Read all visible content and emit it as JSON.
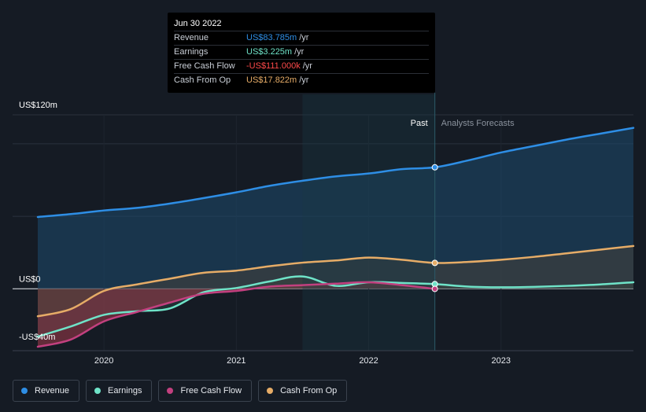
{
  "tooltip": {
    "date": "Jun 30 2022",
    "rows": [
      {
        "name": "Revenue",
        "value": "US$83.785m",
        "unit": "/yr",
        "color": "#2e8ee5"
      },
      {
        "name": "Earnings",
        "value": "US$3.225m",
        "unit": "/yr",
        "color": "#6fe3c8"
      },
      {
        "name": "Free Cash Flow",
        "value": "-US$111.000k",
        "unit": "/yr",
        "color": "#ff4a4a"
      },
      {
        "name": "Cash From Op",
        "value": "US$17.822m",
        "unit": "/yr",
        "color": "#e6ac67"
      }
    ]
  },
  "labels": {
    "past": "Past",
    "forecast": "Analysts Forecasts"
  },
  "legend": [
    {
      "name": "Revenue",
      "color": "#2e8ee5"
    },
    {
      "name": "Earnings",
      "color": "#6fe3c8"
    },
    {
      "name": "Free Cash Flow",
      "color": "#c2407f"
    },
    {
      "name": "Cash From Op",
      "color": "#e6ac67"
    }
  ],
  "chart_data": {
    "type": "line",
    "x_unit": "year",
    "xlim": [
      2019.5,
      2024.0
    ],
    "ylim": [
      -40,
      120
    ],
    "y_tick_labels": [
      {
        "value": 120,
        "label": "US$120m"
      },
      {
        "value": 0,
        "label": "US$0"
      },
      {
        "value": -40,
        "label": "-US$40m"
      }
    ],
    "x_ticks": [
      2020,
      2021,
      2022,
      2023
    ],
    "x_tick_labels": [
      "2020",
      "2021",
      "2022",
      "2023"
    ],
    "forecast_start": 2022.5,
    "highlight_range": [
      2021.5,
      2022.5
    ],
    "series": [
      {
        "name": "Revenue",
        "color": "#2e8ee5",
        "points": [
          [
            2019.5,
            49.5
          ],
          [
            2019.75,
            51.5
          ],
          [
            2020.0,
            54.0
          ],
          [
            2020.25,
            55.8
          ],
          [
            2020.5,
            58.8
          ],
          [
            2020.75,
            62.5
          ],
          [
            2021.0,
            66.5
          ],
          [
            2021.25,
            71.0
          ],
          [
            2021.5,
            74.5
          ],
          [
            2021.75,
            77.5
          ],
          [
            2022.0,
            79.5
          ],
          [
            2022.25,
            82.5
          ],
          [
            2022.5,
            83.785
          ],
          [
            2022.75,
            88.5
          ],
          [
            2023.0,
            94.0
          ],
          [
            2023.25,
            98.5
          ],
          [
            2023.5,
            103.0
          ],
          [
            2023.75,
            107.0
          ],
          [
            2024.0,
            111.0
          ]
        ]
      },
      {
        "name": "Earnings",
        "color": "#6fe3c8",
        "points": [
          [
            2019.5,
            -33.0
          ],
          [
            2019.75,
            -26.0
          ],
          [
            2020.0,
            -18.0
          ],
          [
            2020.25,
            -15.5
          ],
          [
            2020.5,
            -13.5
          ],
          [
            2020.75,
            -2.5
          ],
          [
            2021.0,
            0.5
          ],
          [
            2021.25,
            5.0
          ],
          [
            2021.5,
            8.5
          ],
          [
            2021.75,
            2.0
          ],
          [
            2022.0,
            4.5
          ],
          [
            2022.25,
            4.0
          ],
          [
            2022.5,
            3.225
          ],
          [
            2022.75,
            1.5
          ],
          [
            2023.0,
            1.0
          ],
          [
            2023.25,
            1.3
          ],
          [
            2023.5,
            2.0
          ],
          [
            2023.75,
            3.0
          ],
          [
            2024.0,
            4.5
          ]
        ]
      },
      {
        "name": "Free Cash Flow",
        "color": "#c2407f",
        "points": [
          [
            2019.5,
            -40.0
          ],
          [
            2019.75,
            -35.0
          ],
          [
            2020.0,
            -22.5
          ],
          [
            2020.25,
            -16.0
          ],
          [
            2020.5,
            -9.5
          ],
          [
            2020.75,
            -3.5
          ],
          [
            2021.0,
            -1.5
          ],
          [
            2021.25,
            1.5
          ],
          [
            2021.5,
            2.5
          ],
          [
            2021.75,
            3.5
          ],
          [
            2022.0,
            4.5
          ],
          [
            2022.25,
            2.5
          ],
          [
            2022.5,
            -0.111
          ]
        ]
      },
      {
        "name": "Cash From Op",
        "color": "#e6ac67",
        "points": [
          [
            2019.5,
            -19.0
          ],
          [
            2019.75,
            -14.0
          ],
          [
            2020.0,
            -1.5
          ],
          [
            2020.25,
            3.0
          ],
          [
            2020.5,
            7.0
          ],
          [
            2020.75,
            11.0
          ],
          [
            2021.0,
            12.5
          ],
          [
            2021.25,
            15.5
          ],
          [
            2021.5,
            18.0
          ],
          [
            2021.75,
            19.5
          ],
          [
            2022.0,
            21.5
          ],
          [
            2022.25,
            20.0
          ],
          [
            2022.5,
            17.822
          ],
          [
            2022.75,
            18.5
          ],
          [
            2023.0,
            20.0
          ],
          [
            2023.25,
            22.0
          ],
          [
            2023.5,
            24.5
          ],
          [
            2023.75,
            27.0
          ],
          [
            2024.0,
            29.5
          ]
        ]
      }
    ]
  }
}
